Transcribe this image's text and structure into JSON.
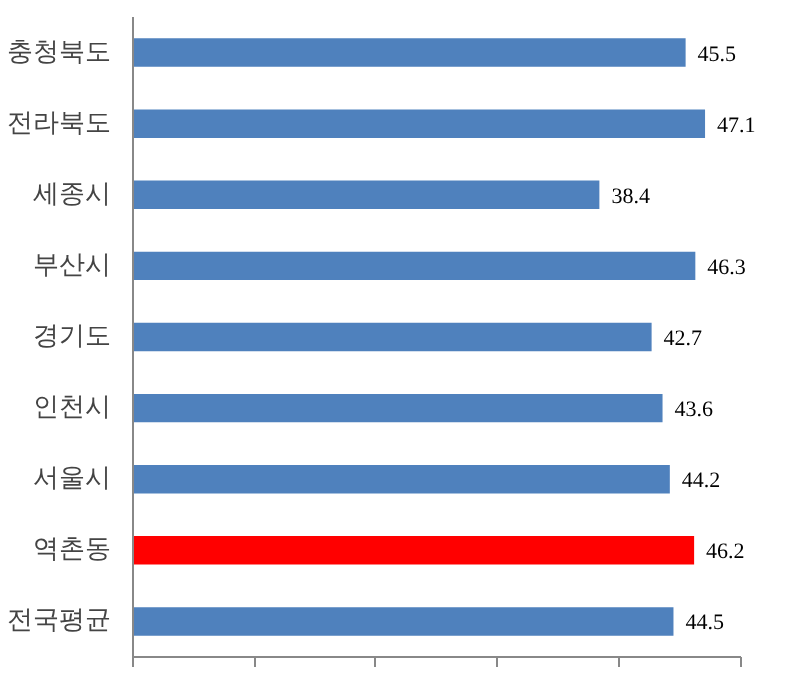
{
  "chart_data": {
    "type": "bar",
    "orientation": "horizontal",
    "categories": [
      "충청북도",
      "전라북도",
      "세종시",
      "부산시",
      "경기도",
      "인천시",
      "서울시",
      "역촌동",
      "전국평균"
    ],
    "values": [
      45.5,
      47.1,
      38.4,
      46.3,
      42.7,
      43.6,
      44.2,
      46.2,
      44.5
    ],
    "colors": [
      "#4f81bd",
      "#4f81bd",
      "#4f81bd",
      "#4f81bd",
      "#4f81bd",
      "#4f81bd",
      "#4f81bd",
      "#ff0000",
      "#4f81bd"
    ],
    "xlim": [
      0,
      50
    ],
    "xticks": [
      {
        "value": 0,
        "label": null
      },
      {
        "value": 10,
        "label": null
      },
      {
        "value": 20,
        "label": null
      },
      {
        "value": 30,
        "label": null
      },
      {
        "value": 40,
        "label": null
      },
      {
        "value": 50,
        "label": null
      }
    ],
    "tick_labels": "y",
    "grid": false,
    "data_labels": true
  }
}
